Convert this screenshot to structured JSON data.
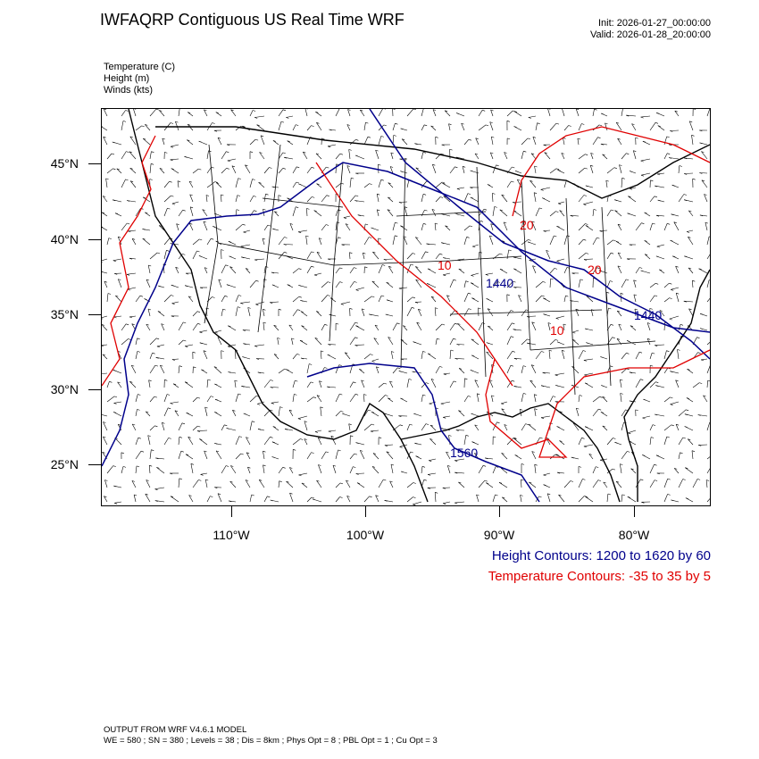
{
  "header": {
    "title": "IWFAQRP Contiguous US Real Time WRF",
    "init": "Init: 2026-01-27_00:00:00",
    "valid": "Valid: 2026-01-28_20:00:00"
  },
  "fields": [
    "Temperature   (C)",
    "Height   (m)",
    "Winds   (kts)"
  ],
  "map": {
    "lat_labels": [
      "45°N",
      "40°N",
      "35°N",
      "30°N",
      "25°N"
    ],
    "lon_labels": [
      "110°W",
      "100°W",
      "90°W",
      "80°W"
    ],
    "height_contour_labels": [
      "1440",
      "1560",
      "1440"
    ],
    "temperature_contour_labels": [
      "20",
      "10",
      "20",
      "10"
    ],
    "colors": {
      "height": "#00008b",
      "temperature": "#e00000",
      "borders": "#000000"
    }
  },
  "legend": {
    "height": "Height Contours: 1200 to 1620 by 60",
    "temperature": "Temperature Contours: -35 to 35 by 5"
  },
  "model": {
    "line1": "OUTPUT FROM WRF V4.6.1 MODEL",
    "line2": "WE = 580 ; SN = 380 ; Levels = 38 ; Dis = 8km ; Phys Opt = 8 ; PBL Opt = 1 ; Cu Opt = 3"
  }
}
